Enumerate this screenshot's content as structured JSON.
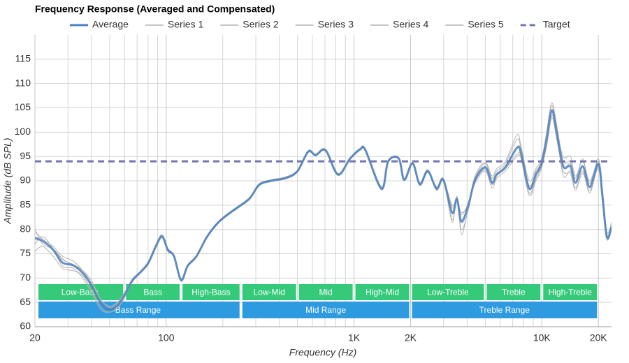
{
  "chart_data": {
    "type": "line",
    "title": "Frequency Response (Averaged and Compensated)",
    "x_label": "Frequency (Hz)",
    "y_label": "Amplitude (dB SPL)",
    "xscale": "log",
    "xlim": [
      20,
      23500
    ],
    "ylim": [
      60,
      120
    ],
    "xticks": [
      20,
      100,
      {
        "value": 1000,
        "label": "1K"
      },
      {
        "value": 2000,
        "label": "2K"
      },
      {
        "value": 10000,
        "label": "10K"
      },
      {
        "value": 20000,
        "label": "20K"
      }
    ],
    "x_minor_ticks": [
      30,
      40,
      50,
      60,
      70,
      80,
      90,
      200,
      300,
      400,
      500,
      600,
      700,
      800,
      900,
      3000,
      4000,
      5000,
      6000,
      7000,
      8000,
      9000
    ],
    "yticks": [
      60,
      65,
      70,
      75,
      80,
      85,
      90,
      95,
      100,
      105,
      110,
      115
    ],
    "grid": true,
    "legend": "top",
    "x": [
      20,
      22,
      25,
      28,
      32,
      36,
      40,
      45,
      50,
      55,
      60,
      66,
      72,
      80,
      88,
      95,
      102,
      110,
      120,
      130,
      145,
      165,
      190,
      220,
      250,
      280,
      313,
      360,
      434,
      500,
      570,
      625,
      705,
      821,
      950,
      1080,
      1150,
      1400,
      1520,
      1730,
      1850,
      2050,
      2240,
      2470,
      2750,
      2990,
      3330,
      3530,
      3730,
      4060,
      4410,
      5000,
      5430,
      5750,
      6400,
      7380,
      7760,
      8560,
      9300,
      9950,
      10600,
      11300,
      12000,
      13000,
      14200,
      15100,
      16500,
      18000,
      20000,
      21000,
      22200,
      23500
    ],
    "series": [
      {
        "name": "Average",
        "color": "#4f81bd",
        "width": 3,
        "values": [
          78.2,
          77.6,
          75.8,
          73.2,
          72.6,
          71,
          68.5,
          64.8,
          63.6,
          64.4,
          66.5,
          69.5,
          71,
          73,
          76.5,
          78.6,
          75.8,
          74.5,
          69.6,
          72.5,
          74.5,
          78.5,
          81.5,
          83.5,
          85,
          86.5,
          89.2,
          90,
          90.6,
          92,
          96,
          95.3,
          96.3,
          91.3,
          94.5,
          96.5,
          96.3,
          88.4,
          94,
          94.6,
          90.2,
          93.6,
          89.3,
          92,
          88.4,
          90.2,
          83.4,
          86.3,
          81.6,
          84.9,
          90.2,
          92.8,
          89.6,
          91.3,
          92.8,
          96.8,
          95.6,
          88.4,
          91.3,
          93.5,
          98.5,
          104.5,
          100,
          93,
          93,
          89.6,
          93,
          88.7,
          93.5,
          87,
          78.4,
          80.5
        ]
      },
      {
        "name": "Series 1",
        "color": "#b4b4b4",
        "width": 1,
        "values": [
          79.5,
          78,
          76.5,
          74.5,
          73.5,
          71.5,
          69,
          65.5,
          64,
          64.8,
          66.8,
          69.8,
          71.2,
          73.2,
          76.8,
          78.9,
          76.1,
          74.7,
          69.9,
          72.7,
          74.7,
          78.7,
          81.7,
          83.7,
          85.2,
          86.7,
          89.4,
          90.2,
          90.8,
          92.2,
          96.2,
          95.5,
          96.5,
          91.5,
          94.7,
          96.7,
          96.5,
          88.8,
          94.2,
          94.8,
          90.5,
          93.8,
          89.6,
          92.3,
          88,
          90.5,
          82,
          86.5,
          80,
          84,
          90.5,
          93.5,
          90.5,
          92,
          93.5,
          98.5,
          96.5,
          89,
          92,
          94,
          100,
          106,
          101.5,
          94,
          94,
          90.5,
          94.5,
          89.5,
          94.5,
          88,
          79,
          81
        ]
      },
      {
        "name": "Series 2",
        "color": "#b4b4b4",
        "width": 1,
        "values": [
          75.5,
          76.5,
          74.5,
          72,
          71.5,
          70.5,
          67.5,
          64,
          63,
          64,
          66.2,
          69.2,
          70.8,
          72.8,
          76.2,
          78.3,
          75.5,
          74.3,
          69.3,
          72.3,
          74.3,
          78.3,
          81.3,
          83.3,
          84.8,
          86.3,
          89,
          89.8,
          90.4,
          91.8,
          95.8,
          95.1,
          96.1,
          91.1,
          94.3,
          96.3,
          96.1,
          88.1,
          93.8,
          94.4,
          90,
          93.4,
          89,
          91.7,
          88.8,
          90,
          84.5,
          86,
          83,
          85.5,
          89.5,
          92,
          88.5,
          90.5,
          92,
          95,
          94.5,
          87,
          90,
          92.5,
          97,
          103,
          98.5,
          92,
          91.5,
          88,
          91.5,
          88,
          92.5,
          86,
          78,
          80
        ]
      },
      {
        "name": "Series 3",
        "color": "#b4b4b4",
        "width": 1,
        "values": [
          80,
          77,
          76,
          74,
          72.5,
          71.5,
          69.5,
          65.5,
          64.2,
          65,
          67,
          69.7,
          71.2,
          73.3,
          76.7,
          78.8,
          76,
          74.6,
          69.8,
          72.6,
          74.6,
          78.6,
          81.6,
          83.6,
          85.1,
          86.6,
          89.3,
          90.1,
          90.7,
          92.1,
          96.1,
          95.4,
          96.4,
          91.4,
          94.6,
          96.6,
          96.4,
          88.5,
          94.1,
          94.7,
          90.3,
          93.7,
          89.4,
          92.1,
          88.6,
          90.4,
          81.5,
          86.8,
          79,
          84.5,
          91,
          93.8,
          91,
          92.5,
          94,
          99.5,
          97,
          90,
          92.5,
          94.5,
          99.5,
          105.5,
          100.5,
          95,
          95,
          91,
          94,
          90,
          94,
          88.5,
          79.5,
          81.5
        ]
      },
      {
        "name": "Series 4",
        "color": "#b4b4b4",
        "width": 1,
        "values": [
          77,
          78.5,
          76,
          72.5,
          72,
          70,
          67,
          63.5,
          63,
          63.8,
          66,
          69.2,
          70.8,
          72.8,
          76.3,
          78.4,
          75.6,
          74.4,
          69.4,
          72.4,
          74.4,
          78.4,
          81.4,
          83.4,
          84.9,
          86.4,
          89.1,
          89.9,
          90.5,
          91.9,
          95.9,
          95.2,
          96.2,
          91.2,
          94.4,
          96.4,
          96.2,
          88.2,
          93.9,
          94.5,
          90.1,
          93.5,
          89.1,
          91.9,
          88.2,
          90.1,
          85,
          86,
          83.5,
          85,
          89.8,
          92.3,
          89.2,
          91,
          92.5,
          95.5,
          95,
          87.5,
          90.5,
          93,
          97.5,
          103.5,
          99.5,
          91,
          92,
          88.5,
          92,
          87.5,
          93,
          86.5,
          78.2,
          80.2
        ]
      },
      {
        "name": "Series 5",
        "color": "#b4b4b4",
        "width": 1,
        "values": [
          78.5,
          77.8,
          76,
          73.8,
          72.8,
          71.5,
          68.8,
          65,
          63.8,
          64.6,
          66.6,
          69.6,
          71.1,
          73.1,
          76.6,
          78.7,
          75.9,
          74.6,
          69.7,
          72.5,
          74.5,
          78.5,
          81.5,
          83.5,
          85,
          86.5,
          89.2,
          90,
          90.6,
          92,
          96,
          95.3,
          96.3,
          91.3,
          94.5,
          96.5,
          96.3,
          88.4,
          94,
          94.6,
          90.2,
          93.6,
          89.3,
          92,
          88.4,
          90.2,
          83.5,
          86.3,
          82,
          85,
          90,
          92.5,
          89.5,
          91.5,
          93,
          97,
          96,
          88.5,
          91.5,
          93.5,
          98.5,
          104.5,
          100,
          93,
          93.5,
          89.5,
          93,
          89,
          93.5,
          87,
          78.5,
          80.5
        ]
      }
    ],
    "target": {
      "name": "Target",
      "color": "#7276b0",
      "value": 94,
      "dashed": true
    },
    "bands": [
      {
        "label": "Low-Bass",
        "from": 20,
        "to": 60
      },
      {
        "label": "Bass",
        "from": 60,
        "to": 120
      },
      {
        "label": "High-Bass",
        "from": 120,
        "to": 250
      },
      {
        "label": "Low-Mid",
        "from": 250,
        "to": 500
      },
      {
        "label": "Mid",
        "from": 500,
        "to": 1000
      },
      {
        "label": "High-Mid",
        "from": 1000,
        "to": 2000
      },
      {
        "label": "Low-Treble",
        "from": 2000,
        "to": 5000
      },
      {
        "label": "Treble",
        "from": 5000,
        "to": 10000
      },
      {
        "label": "High-Treble",
        "from": 10000,
        "to": 20000
      }
    ],
    "band_color": "#35c97a",
    "ranges": [
      {
        "label": "Bass Range",
        "from": 20,
        "to": 250
      },
      {
        "label": "Mid Range",
        "from": 250,
        "to": 2000
      },
      {
        "label": "Treble Range",
        "from": 2000,
        "to": 20000
      }
    ],
    "range_color": "#2e9be0"
  }
}
